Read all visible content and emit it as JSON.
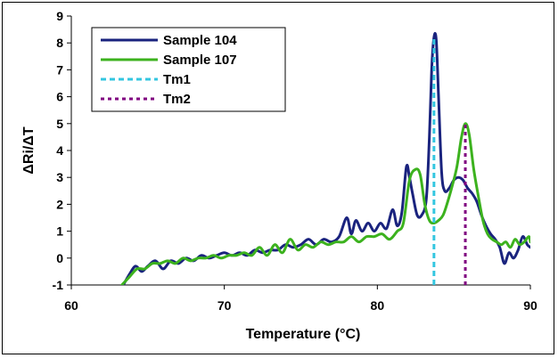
{
  "chart_data": {
    "type": "line",
    "title": "",
    "xlabel": "Temperature (°C)",
    "ylabel": "ΔRi/ΔT",
    "xlim": [
      60,
      90
    ],
    "ylim": [
      -1,
      9
    ],
    "x_ticks": [
      60,
      70,
      80,
      90
    ],
    "y_ticks": [
      -1,
      0,
      1,
      2,
      3,
      4,
      5,
      6,
      7,
      8,
      9
    ],
    "grid": false,
    "legend_position": "top-left",
    "series": [
      {
        "name": "Sample 104",
        "color": "#1a237e",
        "style": "solid",
        "x": [
          63.4,
          63.8,
          64.2,
          64.6,
          65.0,
          65.5,
          66.0,
          66.5,
          67.0,
          67.5,
          68.0,
          68.5,
          69.0,
          69.5,
          70.0,
          70.5,
          71.0,
          71.5,
          72.0,
          72.5,
          73.0,
          73.5,
          74.0,
          74.5,
          75.0,
          75.5,
          76.0,
          76.5,
          77.0,
          77.5,
          78.0,
          78.3,
          78.6,
          79.0,
          79.4,
          79.8,
          80.2,
          80.6,
          81.0,
          81.3,
          81.6,
          81.9,
          82.1,
          82.3,
          82.6,
          82.9,
          83.2,
          83.4,
          83.55,
          83.7,
          83.85,
          84.0,
          84.2,
          84.4,
          84.7,
          85.0,
          85.3,
          85.6,
          85.9,
          86.2,
          86.5,
          86.8,
          87.1,
          87.4,
          87.7,
          88.0,
          88.3,
          88.6,
          88.9,
          89.2,
          89.5,
          89.8,
          90.0
        ],
        "values": [
          -1.0,
          -0.6,
          -0.3,
          -0.5,
          -0.3,
          -0.1,
          -0.4,
          -0.1,
          -0.2,
          0.0,
          -0.1,
          0.1,
          0.0,
          0.1,
          0.2,
          0.1,
          0.2,
          0.1,
          0.3,
          0.2,
          0.3,
          0.3,
          0.5,
          0.4,
          0.5,
          0.7,
          0.5,
          0.7,
          0.6,
          0.8,
          1.5,
          0.9,
          1.4,
          1.0,
          1.3,
          1.0,
          1.3,
          1.1,
          1.8,
          1.2,
          1.7,
          3.4,
          3.0,
          2.4,
          1.6,
          1.6,
          2.2,
          4.5,
          7.0,
          8.2,
          8.1,
          6.0,
          3.2,
          2.5,
          2.6,
          2.9,
          3.0,
          2.9,
          2.6,
          2.4,
          2.1,
          1.6,
          1.2,
          0.9,
          0.7,
          0.4,
          -0.2,
          0.2,
          0.0,
          0.3,
          0.8,
          0.5,
          0.4
        ]
      },
      {
        "name": "Sample 107",
        "color": "#3cb21e",
        "style": "solid",
        "x": [
          63.3,
          63.8,
          64.3,
          64.8,
          65.3,
          65.8,
          66.3,
          66.8,
          67.3,
          67.8,
          68.3,
          68.8,
          69.3,
          69.8,
          70.3,
          70.8,
          71.3,
          71.8,
          72.3,
          72.8,
          73.3,
          73.8,
          74.3,
          74.8,
          75.3,
          75.8,
          76.3,
          76.8,
          77.3,
          77.8,
          78.3,
          78.8,
          79.3,
          79.8,
          80.3,
          80.8,
          81.3,
          81.7,
          82.1,
          82.5,
          82.8,
          83.1,
          83.4,
          83.7,
          84.0,
          84.3,
          84.6,
          84.9,
          85.2,
          85.5,
          85.75,
          86.0,
          86.3,
          86.6,
          86.9,
          87.2,
          87.5,
          87.8,
          88.1,
          88.4,
          88.7,
          89.0,
          89.3,
          89.6,
          89.9,
          90.0
        ],
        "values": [
          -1.0,
          -0.7,
          -0.4,
          -0.4,
          -0.2,
          -0.2,
          -0.1,
          -0.2,
          0.0,
          -0.1,
          0.0,
          0.0,
          0.1,
          0.0,
          0.1,
          0.1,
          0.2,
          0.1,
          0.4,
          0.1,
          0.5,
          0.2,
          0.7,
          0.3,
          0.5,
          0.4,
          0.6,
          0.5,
          0.6,
          0.6,
          0.8,
          0.6,
          0.8,
          0.8,
          0.9,
          0.7,
          1.0,
          1.3,
          2.9,
          3.3,
          3.1,
          2.0,
          1.4,
          1.3,
          1.4,
          1.6,
          2.1,
          2.7,
          3.4,
          4.5,
          5.0,
          4.6,
          3.3,
          2.3,
          1.4,
          0.9,
          0.7,
          0.6,
          0.5,
          0.6,
          0.4,
          0.7,
          0.5,
          0.6,
          0.8,
          0.6
        ]
      },
      {
        "name": "Tm1",
        "color": "#33c6e0",
        "style": "dashed",
        "x": [
          83.7,
          83.7
        ],
        "values": [
          -1,
          8.2
        ]
      },
      {
        "name": "Tm2",
        "color": "#800080",
        "style": "dotted",
        "x": [
          85.75,
          85.75
        ],
        "values": [
          -1,
          5.0
        ]
      }
    ]
  }
}
